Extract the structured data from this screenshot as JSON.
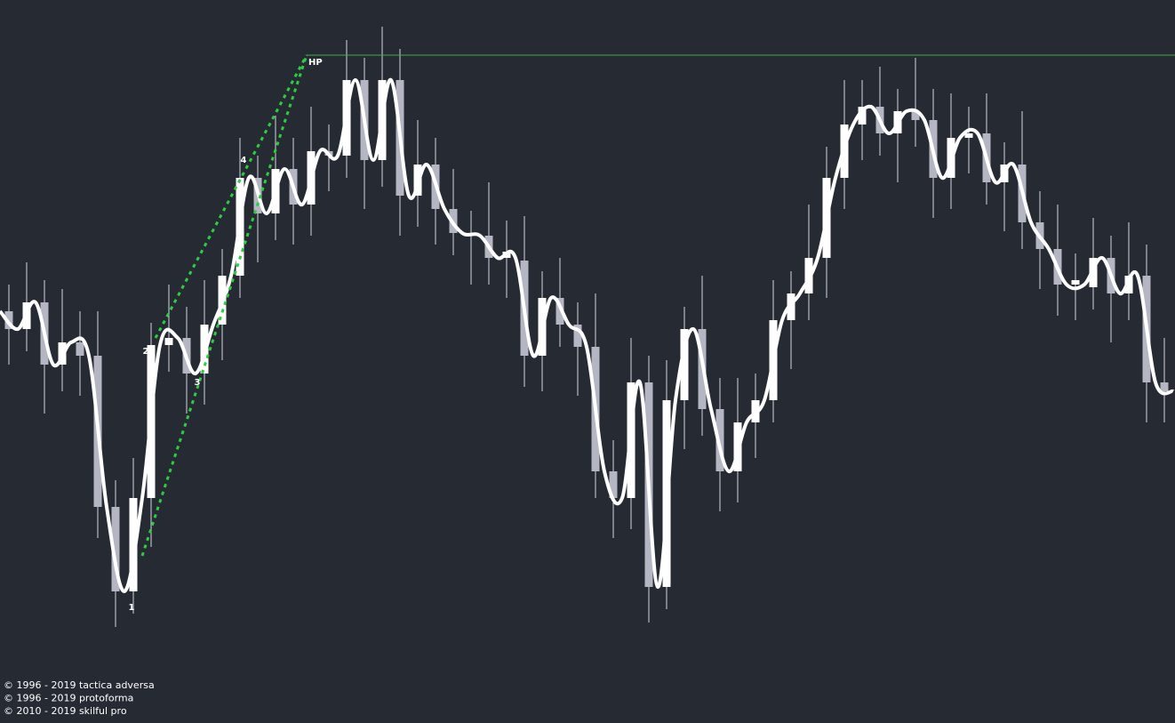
{
  "chart_data": {
    "type": "candlestick",
    "xlim": [
      0,
      1322
    ],
    "ylim": [
      0,
      813
    ],
    "bull_color": "#ffffff",
    "bear_color": "#b4b6c3",
    "wick_color": "#d4d6de",
    "background": "#262a33",
    "candles": {
      "x": [
        10,
        30,
        50,
        70,
        90,
        110,
        130,
        150,
        170,
        190,
        210,
        230,
        250,
        270,
        290,
        310,
        330,
        350,
        370,
        390,
        410,
        430,
        450,
        470,
        490,
        510,
        530,
        550,
        570,
        590,
        610,
        630,
        650,
        670,
        690,
        710,
        730,
        750,
        770,
        790,
        810,
        830,
        850,
        870,
        890,
        910,
        930,
        950,
        970,
        990,
        1010,
        1030,
        1050,
        1070,
        1090,
        1110,
        1130,
        1150,
        1170,
        1190,
        1210,
        1230,
        1250,
        1270,
        1290,
        1310
      ],
      "open": [
        463,
        443,
        473,
        403,
        428,
        413,
        243,
        148,
        253,
        425,
        433,
        393,
        448,
        503,
        613,
        573,
        623,
        583,
        643,
        638,
        723,
        633,
        723,
        593,
        628,
        578,
        551,
        548,
        523,
        520,
        413,
        478,
        448,
        423,
        283,
        253,
        383,
        153,
        363,
        443,
        353,
        283,
        338,
        363,
        453,
        483,
        523,
        613,
        673,
        693,
        663,
        688,
        678,
        613,
        658,
        663,
        608,
        628,
        563,
        533,
        493,
        490,
        523,
        483,
        503,
        383
      ],
      "high": [
        493,
        518,
        498,
        488,
        463,
        463,
        273,
        298,
        450,
        493,
        468,
        498,
        533,
        658,
        638,
        683,
        658,
        693,
        673,
        768,
        748,
        783,
        758,
        678,
        658,
        623,
        576,
        608,
        565,
        570,
        508,
        523,
        473,
        483,
        318,
        433,
        413,
        408,
        468,
        503,
        388,
        388,
        393,
        498,
        508,
        583,
        648,
        723,
        723,
        738,
        713,
        748,
        713,
        708,
        693,
        708,
        653,
        688,
        598,
        583,
        528,
        568,
        548,
        563,
        538,
        433
      ],
      "low": [
        403,
        418,
        348,
        373,
        368,
        208,
        108,
        123,
        198,
        395,
        348,
        358,
        408,
        478,
        518,
        543,
        538,
        548,
        598,
        613,
        578,
        603,
        548,
        558,
        538,
        526,
        493,
        493,
        478,
        378,
        373,
        423,
        368,
        253,
        208,
        218,
        113,
        128,
        308,
        323,
        238,
        248,
        298,
        338,
        398,
        453,
        478,
        578,
        633,
        638,
        608,
        648,
        568,
        578,
        618,
        583,
        553,
        533,
        488,
        458,
        453,
        465,
        428,
        453,
        338,
        338
      ],
      "close": [
        443,
        473,
        403,
        428,
        413,
        243,
        148,
        253,
        425,
        433,
        393,
        448,
        503,
        613,
        573,
        623,
        583,
        643,
        638,
        723,
        633,
        723,
        593,
        628,
        578,
        551,
        548,
        523,
        530,
        413,
        478,
        448,
        423,
        283,
        253,
        383,
        153,
        363,
        443,
        353,
        283,
        338,
        363,
        453,
        483,
        523,
        613,
        673,
        693,
        663,
        688,
        678,
        613,
        658,
        663,
        608,
        628,
        563,
        533,
        493,
        498,
        523,
        483,
        503,
        383,
        373
      ]
    },
    "smooth": {
      "color": "#ffffff",
      "x": [
        0,
        20,
        40,
        60,
        80,
        100,
        120,
        140,
        160,
        180,
        200,
        220,
        240,
        260,
        280,
        300,
        320,
        340,
        360,
        380,
        400,
        420,
        440,
        460,
        480,
        500,
        520,
        540,
        560,
        580,
        600,
        620,
        640,
        660,
        680,
        700,
        720,
        740,
        760,
        780,
        800,
        820,
        840,
        860,
        880,
        900,
        920,
        940,
        960,
        980,
        1000,
        1020,
        1040,
        1060,
        1080,
        1100,
        1120,
        1140,
        1160,
        1180,
        1200,
        1220,
        1240,
        1260,
        1280,
        1300,
        1320
      ],
      "values": [
        463,
        443,
        473,
        403,
        428,
        413,
        243,
        148,
        253,
        425,
        433,
        393,
        448,
        503,
        613,
        573,
        623,
        583,
        643,
        638,
        723,
        633,
        723,
        593,
        628,
        578,
        551,
        548,
        523,
        523,
        413,
        478,
        448,
        423,
        283,
        253,
        383,
        153,
        363,
        443,
        353,
        283,
        338,
        363,
        453,
        483,
        523,
        613,
        673,
        693,
        663,
        688,
        678,
        613,
        658,
        663,
        608,
        628,
        563,
        533,
        493,
        493,
        523,
        483,
        503,
        383,
        373
      ]
    },
    "trend_lines": [
      {
        "color": "#2ecc40",
        "x": [
          160,
          345
        ],
        "values": [
          188,
          751
        ]
      },
      {
        "color": "#2ecc40",
        "x": [
          175,
          345
        ],
        "values": [
          433,
          751
        ]
      }
    ],
    "hp_level": {
      "label": "HP",
      "value": 751,
      "x_start": 345,
      "color": "#3cb043"
    },
    "annotations": [
      {
        "label": "1",
        "x": 148,
        "y": 130
      },
      {
        "label": "2",
        "x": 164,
        "y": 418
      },
      {
        "label": "3",
        "x": 222,
        "y": 383
      },
      {
        "label": "4",
        "x": 274,
        "y": 633
      }
    ]
  },
  "footer": [
    "© 1996 - 2019 tactica adversa",
    "© 1996 - 2019 protoforma",
    "© 2010 - 2019 skilful pro"
  ]
}
